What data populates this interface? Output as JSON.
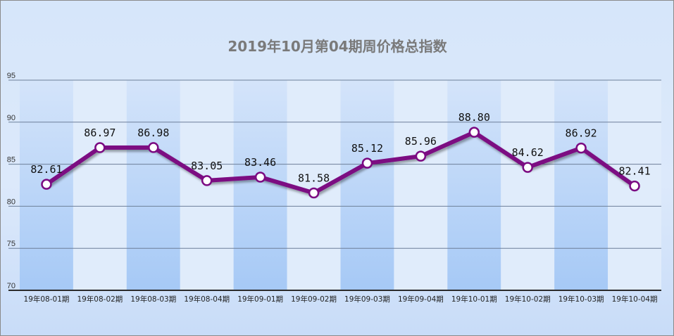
{
  "chart_data": {
    "type": "line",
    "title": "2019年10月第04期周价格总指数",
    "xlabel": "",
    "ylabel": "",
    "categories": [
      "19年08-01期",
      "19年08-02期",
      "19年08-03期",
      "19年08-04期",
      "19年09-01期",
      "19年09-02期",
      "19年09-03期",
      "19年09-04期",
      "19年10-01期",
      "19年10-02期",
      "19年10-03期",
      "19年10-04期"
    ],
    "series": [
      {
        "values": [
          82.61,
          86.97,
          86.98,
          83.05,
          83.46,
          81.58,
          85.12,
          85.96,
          88.8,
          84.62,
          86.92,
          82.41
        ],
        "labels": [
          "82.61",
          "86.97",
          "86.98",
          "83.05",
          "83.46",
          "81.58",
          "85.12",
          "85.96",
          "88.80",
          "84.62",
          "86.92",
          "82.41"
        ]
      }
    ],
    "ylim": [
      70,
      95
    ],
    "yticks": [
      "70",
      "75",
      "80",
      "85",
      "90",
      "95"
    ],
    "grid": true,
    "legend": "none",
    "colors": {
      "line": "#7b0a82",
      "marker_fill": "#ffffff",
      "band_dark": "#a9ccf7",
      "band_light": "#e0ecfb",
      "gridline": "#6d7f99",
      "title": "#7a7a7a"
    }
  }
}
